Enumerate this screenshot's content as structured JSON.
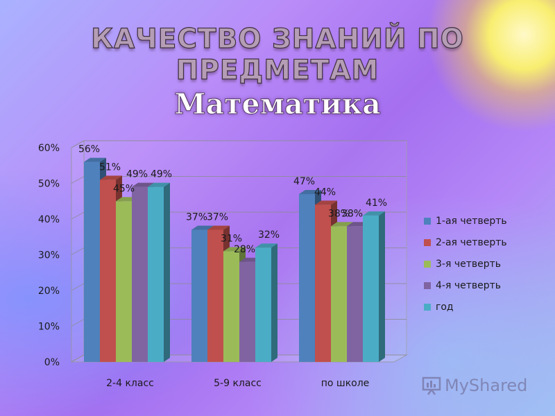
{
  "slide": {
    "title": "КАЧЕСТВО ЗНАНИЙ ПО ПРЕДМЕТАМ",
    "subtitle": "Математика",
    "watermark": "MyShared"
  },
  "chart_data": {
    "type": "bar",
    "categories": [
      "2-4 класс",
      "5-9 класс",
      "по школе"
    ],
    "series": [
      {
        "name": "1-ая четверть",
        "values": [
          56,
          37,
          47
        ],
        "labels": [
          "56%",
          "37%",
          "47%"
        ],
        "color": "#4f81bd"
      },
      {
        "name": "2-ая четверть",
        "values": [
          51,
          37,
          44
        ],
        "labels": [
          "51%",
          "37%",
          "44%"
        ],
        "color": "#c0504d"
      },
      {
        "name": "3-я четверть",
        "values": [
          45,
          31,
          38
        ],
        "labels": [
          "45%",
          "31%",
          "38%"
        ],
        "color": "#9bbb59"
      },
      {
        "name": "4-я четверть",
        "values": [
          49,
          28,
          38
        ],
        "labels": [
          "49%",
          "28%",
          "38%"
        ],
        "color": "#8064a2"
      },
      {
        "name": "год",
        "values": [
          49,
          32,
          41
        ],
        "labels": [
          "49%",
          "32%",
          "41%"
        ],
        "color": "#4bacc6"
      }
    ],
    "yticks": [
      "0%",
      "10%",
      "20%",
      "30%",
      "40%",
      "50%",
      "60%"
    ],
    "ylim": [
      0,
      60
    ],
    "legend_position": "right",
    "bars_3d": true
  }
}
